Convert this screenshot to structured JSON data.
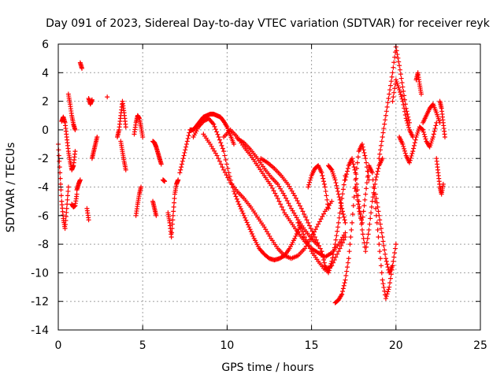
{
  "chart_data": {
    "type": "scatter",
    "title": "Day 091 of 2023, Sidereal Day-to-day VTEC variation (SDTVAR) for receiver reyk",
    "xlabel": "GPS time / hours",
    "ylabel": "SDTVAR / TECUs",
    "xlim": [
      0,
      25
    ],
    "ylim": [
      -14,
      6
    ],
    "xticks": [
      0,
      5,
      10,
      15,
      20,
      25
    ],
    "yticks": [
      -14,
      -12,
      -10,
      -8,
      -6,
      -4,
      -2,
      0,
      2,
      4,
      6
    ],
    "grid": true,
    "marker": "+",
    "series": [
      {
        "name": "SDTVAR",
        "color": "#ff0000",
        "tracks": [
          {
            "x": [
              0.0,
              0.1,
              0.2,
              0.3,
              0.4,
              0.5,
              0.6
            ],
            "y": [
              -1.0,
              -3.0,
              -5.0,
              -6.2,
              -6.9,
              -5.5,
              -4.0
            ]
          },
          {
            "x": [
              0.2,
              0.3,
              0.4,
              0.5,
              0.6,
              0.7,
              0.8,
              0.9,
              1.0
            ],
            "y": [
              0.6,
              0.9,
              0.5,
              -0.5,
              -1.5,
              -2.2,
              -2.8,
              -2.5,
              -1.5
            ]
          },
          {
            "x": [
              0.6,
              0.7,
              0.8,
              0.9,
              1.0
            ],
            "y": [
              2.5,
              1.8,
              1.0,
              0.4,
              0.0
            ]
          },
          {
            "x": [
              0.8,
              0.9,
              1.0,
              1.1
            ],
            "y": [
              -5.2,
              -5.4,
              -5.3,
              -4.5
            ]
          },
          {
            "x": [
              1.1,
              1.2,
              1.3
            ],
            "y": [
              -4.2,
              -3.8,
              -3.5
            ]
          },
          {
            "x": [
              1.3,
              1.4
            ],
            "y": [
              4.7,
              4.3
            ]
          },
          {
            "x": [
              1.7,
              1.8
            ],
            "y": [
              -5.5,
              -6.3
            ]
          },
          {
            "x": [
              1.8,
              1.9,
              2.0
            ],
            "y": [
              2.2,
              1.8,
              2.1
            ]
          },
          {
            "x": [
              2.0,
              2.1,
              2.2,
              2.3
            ],
            "y": [
              -2.0,
              -1.5,
              -1.0,
              -0.5
            ]
          },
          {
            "x": [
              2.9
            ],
            "y": [
              2.3
            ]
          },
          {
            "x": [
              3.5,
              3.6,
              3.7,
              3.8,
              3.9,
              4.0
            ],
            "y": [
              -0.5,
              0.0,
              1.0,
              2.0,
              1.2,
              0.2
            ]
          },
          {
            "x": [
              3.7,
              3.8,
              3.9,
              4.0
            ],
            "y": [
              -0.8,
              -1.5,
              -2.2,
              -2.8
            ]
          },
          {
            "x": [
              4.5,
              4.6,
              4.7,
              4.8,
              4.9,
              5.0
            ],
            "y": [
              -0.3,
              0.5,
              1.0,
              0.8,
              0.2,
              -0.5
            ]
          },
          {
            "x": [
              4.6,
              4.7,
              4.8,
              4.9
            ],
            "y": [
              -6.0,
              -5.2,
              -4.5,
              -4.0
            ]
          },
          {
            "x": [
              5.6,
              5.7,
              5.8
            ],
            "y": [
              -5.0,
              -5.5,
              -6.0
            ]
          },
          {
            "x": [
              5.6,
              5.7,
              5.8,
              5.9,
              6.0,
              6.1
            ],
            "y": [
              -0.8,
              -0.9,
              -1.2,
              -1.6,
              -2.0,
              -2.4
            ]
          },
          {
            "x": [
              6.2,
              6.3
            ],
            "y": [
              -3.5,
              -3.6
            ]
          },
          {
            "x": [
              6.5,
              6.6,
              6.7,
              6.8,
              6.9,
              7.0,
              7.1
            ],
            "y": [
              -5.8,
              -6.5,
              -7.5,
              -6.0,
              -4.5,
              -3.8,
              -3.5
            ]
          },
          {
            "x": [
              7.2,
              7.4,
              7.6,
              7.8,
              8.0,
              8.2,
              8.4,
              8.6,
              8.8,
              9.0,
              9.2,
              9.4,
              9.6,
              9.8,
              10.0,
              10.2,
              10.4
            ],
            "y": [
              -3.0,
              -2.0,
              -1.0,
              0.0,
              0.0,
              0.3,
              0.6,
              0.9,
              1.0,
              1.1,
              1.1,
              1.0,
              0.9,
              0.6,
              0.2,
              -0.4,
              -1.0
            ]
          },
          {
            "x": [
              8.0,
              8.3,
              8.6,
              8.9,
              9.2,
              9.5,
              9.8,
              10.1,
              10.4,
              10.7,
              11.0,
              11.3,
              11.6,
              11.9,
              12.2,
              12.5,
              12.8,
              13.1,
              13.4,
              13.7,
              14.0,
              14.3
            ],
            "y": [
              -0.5,
              0.2,
              0.6,
              0.8,
              0.4,
              -0.5,
              -1.5,
              -3.0,
              -4.3,
              -5.2,
              -6.0,
              -6.8,
              -7.6,
              -8.3,
              -8.7,
              -9.0,
              -9.1,
              -9.0,
              -8.8,
              -8.3,
              -7.6,
              -6.8
            ]
          },
          {
            "x": [
              8.6,
              9.0,
              9.4,
              9.8,
              10.2,
              10.6,
              11.0,
              11.4,
              11.8,
              12.2,
              12.6,
              13.0,
              13.4,
              13.8,
              14.2,
              14.6,
              15.0,
              15.4,
              15.8,
              16.2
            ],
            "y": [
              -0.3,
              -1.0,
              -1.8,
              -2.8,
              -3.7,
              -4.3,
              -4.8,
              -5.4,
              -6.1,
              -6.8,
              -7.6,
              -8.3,
              -8.8,
              -9.0,
              -8.8,
              -8.3,
              -7.5,
              -6.6,
              -5.7,
              -5.0
            ]
          },
          {
            "x": [
              9.8,
              10.2,
              10.6,
              11.0,
              11.4,
              11.8,
              12.2,
              12.6,
              13.0,
              13.4,
              13.8,
              14.2,
              14.6,
              15.0,
              15.4,
              15.8,
              16.2,
              16.6,
              17.0
            ],
            "y": [
              -0.5,
              0.0,
              -0.5,
              -1.2,
              -1.8,
              -2.5,
              -3.2,
              -3.9,
              -4.8,
              -5.8,
              -6.5,
              -7.2,
              -7.8,
              -8.3,
              -8.6,
              -8.9,
              -8.6,
              -8.0,
              -7.2
            ]
          },
          {
            "x": [
              10.6,
              11.0,
              11.4,
              11.8,
              12.2,
              12.6,
              13.0,
              13.4,
              13.8,
              14.2,
              14.6,
              15.0,
              15.4
            ],
            "y": [
              -0.6,
              -0.9,
              -1.4,
              -2.0,
              -2.7,
              -3.3,
              -3.8,
              -4.6,
              -5.5,
              -6.3,
              -7.0,
              -7.6,
              -8.1
            ]
          },
          {
            "x": [
              12.0,
              12.4,
              12.8,
              13.2,
              13.6,
              14.0,
              14.4,
              14.8,
              15.2,
              15.6
            ],
            "y": [
              -2.0,
              -2.3,
              -2.7,
              -3.2,
              -3.8,
              -4.6,
              -5.5,
              -6.5,
              -7.5,
              -8.5
            ]
          },
          {
            "x": [
              14.2,
              14.6,
              15.0,
              15.4,
              15.8,
              16.2,
              16.6,
              17.0
            ],
            "y": [
              -6.5,
              -7.5,
              -8.5,
              -9.2,
              -9.8,
              -9.5,
              -8.5,
              -7.5
            ]
          },
          {
            "x": [
              14.8,
              15.0,
              15.2,
              15.4,
              15.6,
              15.8,
              16.0
            ],
            "y": [
              -4.0,
              -3.2,
              -2.7,
              -2.5,
              -3.0,
              -4.0,
              -5.5
            ]
          },
          {
            "x": [
              15.6,
              15.8,
              16.0,
              16.2,
              16.4,
              16.6,
              16.8,
              17.0
            ],
            "y": [
              -8.5,
              -9.5,
              -10.0,
              -9.2,
              -8.0,
              -6.5,
              -4.8,
              -3.2
            ]
          },
          {
            "x": [
              16.0,
              16.2,
              16.4,
              16.6,
              16.8,
              17.0
            ],
            "y": [
              -2.5,
              -2.8,
              -3.5,
              -4.5,
              -5.5,
              -6.5
            ]
          },
          {
            "x": [
              16.4,
              16.6,
              16.8,
              17.0,
              17.2,
              17.4,
              17.6,
              17.8,
              18.0,
              18.2,
              18.4
            ],
            "y": [
              -12.1,
              -11.9,
              -11.5,
              -10.5,
              -9.0,
              -6.5,
              -3.5,
              -1.5,
              -1.0,
              -2.0,
              -3.5
            ]
          },
          {
            "x": [
              17.0,
              17.2,
              17.4,
              17.6,
              17.8,
              18.0,
              18.2,
              18.4,
              18.6,
              18.8,
              19.0,
              19.2
            ],
            "y": [
              -3.5,
              -2.5,
              -2.0,
              -3.0,
              -5.0,
              -7.0,
              -8.5,
              -7.0,
              -5.0,
              -3.5,
              -2.5,
              -2.0
            ]
          },
          {
            "x": [
              17.6,
              17.8,
              18.0,
              18.2,
              18.4,
              18.6,
              18.8,
              19.0,
              19.2,
              19.4,
              19.6,
              19.8
            ],
            "y": [
              -4.0,
              -5.5,
              -6.5,
              -4.5,
              -2.5,
              -3.0,
              -5.5,
              -8.0,
              -10.5,
              -11.8,
              -11.0,
              -9.5
            ]
          },
          {
            "x": [
              18.8,
              19.0,
              19.2,
              19.4,
              19.6,
              19.8,
              20.0
            ],
            "y": [
              -4.5,
              -6.0,
              -7.5,
              -9.0,
              -10.0,
              -9.5,
              -8.0
            ]
          },
          {
            "x": [
              19.0,
              19.2,
              19.4,
              19.6,
              19.8,
              20.0,
              20.2,
              20.4,
              20.6,
              20.8
            ],
            "y": [
              -2.0,
              -0.5,
              1.0,
              2.5,
              4.0,
              5.8,
              4.5,
              3.0,
              1.5,
              0.5
            ]
          },
          {
            "x": [
              19.8,
              20.0,
              20.2,
              20.4,
              20.6,
              20.8,
              21.0
            ],
            "y": [
              2.0,
              3.5,
              2.8,
              2.0,
              0.8,
              0.0,
              -0.5
            ]
          },
          {
            "x": [
              20.2,
              20.4,
              20.6,
              20.8,
              21.0,
              21.2,
              21.4,
              21.6,
              21.8,
              22.0,
              22.2,
              22.4
            ],
            "y": [
              -0.5,
              -1.0,
              -1.8,
              -2.3,
              -1.5,
              -0.5,
              0.2,
              0.0,
              -0.8,
              -1.2,
              -0.5,
              0.5
            ]
          },
          {
            "x": [
              21.2,
              21.3,
              21.4,
              21.5
            ],
            "y": [
              3.5,
              4.0,
              3.2,
              2.5
            ]
          },
          {
            "x": [
              21.6,
              21.8,
              22.0,
              22.2,
              22.4,
              22.6
            ],
            "y": [
              0.5,
              1.0,
              1.5,
              1.8,
              1.2,
              0.5
            ]
          },
          {
            "x": [
              22.4,
              22.5,
              22.6,
              22.7,
              22.8
            ],
            "y": [
              -2.0,
              -3.0,
              -4.0,
              -4.5,
              -3.8
            ]
          },
          {
            "x": [
              22.6,
              22.7,
              22.8,
              22.9
            ],
            "y": [
              2.0,
              1.5,
              0.5,
              -0.5
            ]
          }
        ]
      }
    ]
  }
}
